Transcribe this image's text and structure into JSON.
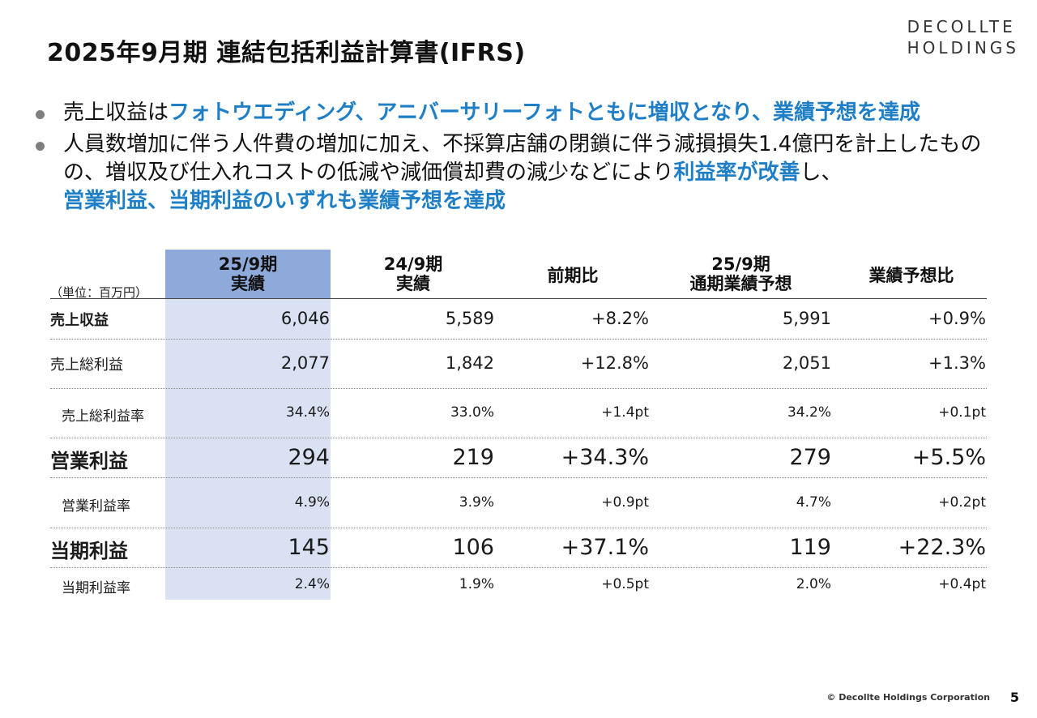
{
  "title": "2025年9月期 連結包括利益計算書(IFRS)",
  "logo": {
    "line1": "DECOLLTE",
    "line2": "HOLDINGS"
  },
  "bullets": [
    {
      "plain": "売上収益は",
      "highlight": "フォトウエディング、アニバーサリーフォトともに増収となり、業績予想を達成"
    },
    {
      "plain1": "人員数増加に伴う人件費の増加に加え、不採算店舗の閉鎖に伴う減損損失1.4億円を計上したものの、増収及び仕入れコストの低減や減価償却費の減少などにより",
      "highlight1": "利益率が改善",
      "plain2": "し、",
      "highlight2": "営業利益、当期利益のいずれも業績予想を達成"
    }
  ],
  "table": {
    "unit": "（単位：百万円）",
    "headers": {
      "c1": {
        "line1": "25/9期",
        "line2": "実績"
      },
      "c2": {
        "line1": "24/9期",
        "line2": "実績"
      },
      "c3": {
        "line1": "前期比"
      },
      "c4": {
        "line1": "25/9期",
        "line2": "通期業績予想"
      },
      "c5": {
        "line1": "業績予想比"
      }
    },
    "rows": [
      {
        "label": "売上収益",
        "c1": "6,046",
        "c2": "5,589",
        "c3": "+8.2%",
        "c4": "5,991",
        "c5": "+0.9%"
      },
      {
        "label": "売上総利益",
        "c1": "2,077",
        "c2": "1,842",
        "c3": "+12.8%",
        "c4": "2,051",
        "c5": "+1.3%"
      },
      {
        "label": "売上総利益率",
        "c1": "34.4%",
        "c2": "33.0%",
        "c3": "+1.4pt",
        "c4": "34.2%",
        "c5": "+0.1pt"
      },
      {
        "label": "営業利益",
        "c1": "294",
        "c2": "219",
        "c3": "+34.3%",
        "c4": "279",
        "c5": "+5.5%"
      },
      {
        "label": "営業利益率",
        "c1": "4.9%",
        "c2": "3.9%",
        "c3": "+0.9pt",
        "c4": "4.7%",
        "c5": "+0.2pt"
      },
      {
        "label": "当期利益",
        "c1": "145",
        "c2": "106",
        "c3": "+37.1%",
        "c4": "119",
        "c5": "+22.3%"
      },
      {
        "label": "当期利益率",
        "c1": "2.4%",
        "c2": "1.9%",
        "c3": "+0.5pt",
        "c4": "2.0%",
        "c5": "+0.4pt"
      }
    ]
  },
  "footer": {
    "copyright": "© Decollte Holdings Corporation",
    "page": "5"
  }
}
